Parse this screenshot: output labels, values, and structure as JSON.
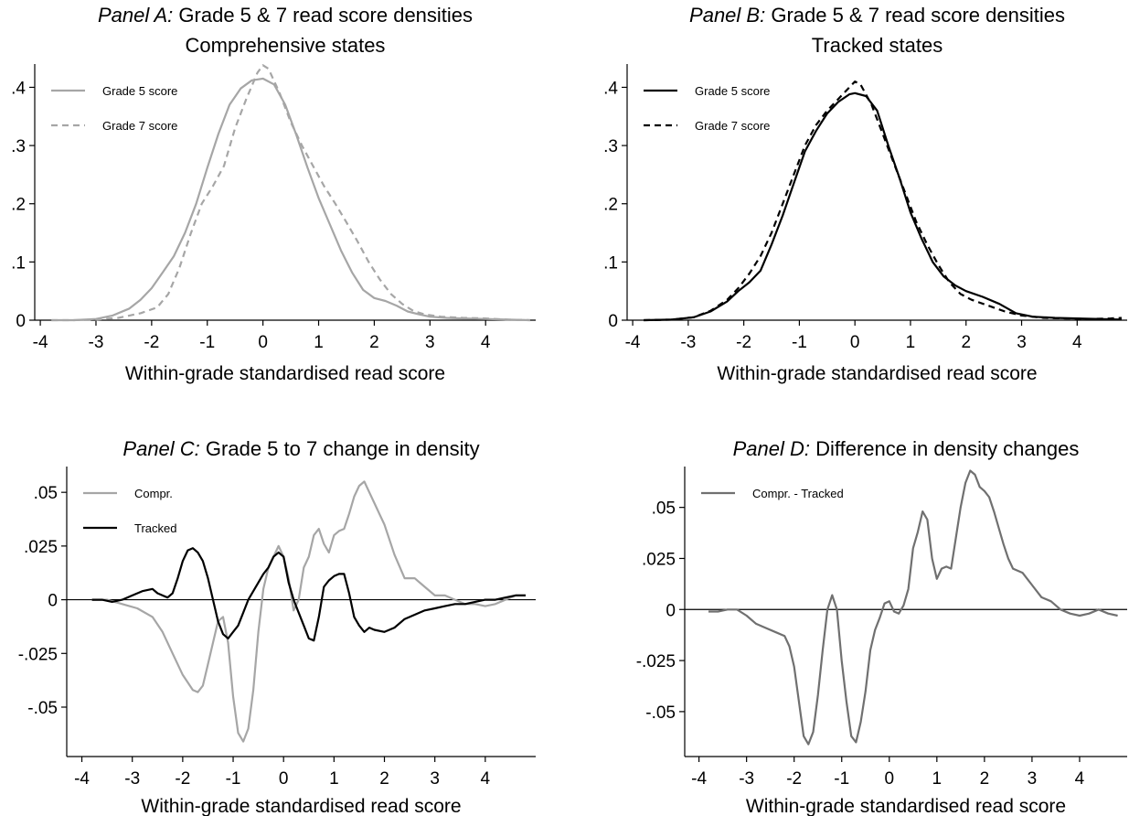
{
  "chart_data": [
    {
      "type": "line",
      "panel": "A",
      "title_prefix": "Panel A:",
      "title_rest": "Grade 5 & 7 read score densities",
      "subtitle": "Comprehensive states",
      "xlabel": "Within-grade standardised read score",
      "ylabel": "",
      "xlim": [
        -4.1,
        4.9
      ],
      "ylim": [
        0,
        0.44
      ],
      "xticks": [
        -4,
        -3,
        -2,
        -1,
        0,
        1,
        2,
        3,
        4
      ],
      "xtick_labels": [
        "-4",
        "-3",
        "-2",
        "-1",
        "0",
        "1",
        "2",
        "3",
        "4"
      ],
      "yticks": [
        0,
        0.1,
        0.2,
        0.3,
        0.4
      ],
      "ytick_labels": [
        "0",
        ".1",
        ".2",
        ".3",
        ".4"
      ],
      "zero_line": false,
      "legend_position": "top-left",
      "series": [
        {
          "name": "Grade 5 score",
          "color": "#a6a6a6",
          "dash": "solid",
          "x": [
            -3.8,
            -3.4,
            -3.0,
            -2.7,
            -2.4,
            -2.2,
            -2.0,
            -1.8,
            -1.6,
            -1.4,
            -1.2,
            -1.0,
            -0.8,
            -0.6,
            -0.4,
            -0.2,
            0.0,
            0.2,
            0.4,
            0.6,
            0.8,
            1.0,
            1.2,
            1.4,
            1.6,
            1.8,
            2.0,
            2.2,
            2.4,
            2.6,
            2.8,
            3.0,
            3.3,
            3.6,
            4.0,
            4.4,
            4.8
          ],
          "y": [
            0.0,
            0.0,
            0.002,
            0.008,
            0.02,
            0.035,
            0.055,
            0.082,
            0.11,
            0.15,
            0.2,
            0.262,
            0.32,
            0.37,
            0.398,
            0.412,
            0.415,
            0.405,
            0.37,
            0.318,
            0.262,
            0.21,
            0.165,
            0.12,
            0.082,
            0.052,
            0.038,
            0.033,
            0.025,
            0.015,
            0.01,
            0.006,
            0.004,
            0.003,
            0.002,
            0.001,
            0.0
          ]
        },
        {
          "name": "Grade 7 score",
          "color": "#a6a6a6",
          "dash": "dashed",
          "x": [
            -3.8,
            -3.4,
            -3.0,
            -2.6,
            -2.2,
            -1.9,
            -1.7,
            -1.5,
            -1.3,
            -1.1,
            -0.9,
            -0.7,
            -0.5,
            -0.3,
            -0.1,
            0.0,
            0.1,
            0.3,
            0.5,
            0.7,
            0.9,
            1.1,
            1.3,
            1.5,
            1.7,
            1.9,
            2.1,
            2.3,
            2.5,
            2.7,
            2.9,
            3.2,
            3.6,
            4.0,
            4.4,
            4.8
          ],
          "y": [
            0.0,
            0.0,
            0.001,
            0.004,
            0.012,
            0.022,
            0.045,
            0.09,
            0.148,
            0.2,
            0.23,
            0.265,
            0.33,
            0.38,
            0.425,
            0.438,
            0.432,
            0.39,
            0.34,
            0.3,
            0.265,
            0.23,
            0.2,
            0.168,
            0.135,
            0.1,
            0.07,
            0.045,
            0.028,
            0.016,
            0.01,
            0.006,
            0.004,
            0.003,
            0.001,
            0.0
          ]
        }
      ]
    },
    {
      "type": "line",
      "panel": "B",
      "title_prefix": "Panel B:",
      "title_rest": "Grade 5 & 7 read score densities",
      "subtitle": "Tracked states",
      "xlabel": "Within-grade standardised read score",
      "ylabel": "",
      "xlim": [
        -4.1,
        4.9
      ],
      "ylim": [
        0,
        0.44
      ],
      "xticks": [
        -4,
        -3,
        -2,
        -1,
        0,
        1,
        2,
        3,
        4
      ],
      "xtick_labels": [
        "-4",
        "-3",
        "-2",
        "-1",
        "0",
        "1",
        "2",
        "3",
        "4"
      ],
      "yticks": [
        0,
        0.1,
        0.2,
        0.3,
        0.4
      ],
      "ytick_labels": [
        "0",
        ".1",
        ".2",
        ".3",
        ".4"
      ],
      "zero_line": false,
      "legend_position": "top-left",
      "series": [
        {
          "name": "Grade 5 score",
          "color": "#000000",
          "dash": "solid",
          "x": [
            -3.8,
            -3.3,
            -2.9,
            -2.6,
            -2.3,
            -2.1,
            -1.9,
            -1.7,
            -1.5,
            -1.3,
            -1.1,
            -0.9,
            -0.7,
            -0.5,
            -0.3,
            -0.1,
            0.0,
            0.2,
            0.4,
            0.6,
            0.8,
            1.0,
            1.2,
            1.4,
            1.6,
            1.8,
            2.0,
            2.3,
            2.6,
            2.9,
            3.2,
            3.6,
            4.0,
            4.4,
            4.8
          ],
          "y": [
            0.0,
            0.001,
            0.005,
            0.015,
            0.032,
            0.05,
            0.065,
            0.085,
            0.13,
            0.18,
            0.235,
            0.29,
            0.325,
            0.355,
            0.375,
            0.388,
            0.39,
            0.385,
            0.36,
            0.3,
            0.245,
            0.185,
            0.14,
            0.1,
            0.075,
            0.06,
            0.05,
            0.04,
            0.028,
            0.012,
            0.006,
            0.004,
            0.003,
            0.002,
            0.001
          ]
        },
        {
          "name": "Grade 7 score",
          "color": "#000000",
          "dash": "dashed",
          "x": [
            -3.8,
            -3.3,
            -2.9,
            -2.6,
            -2.3,
            -2.1,
            -1.9,
            -1.7,
            -1.5,
            -1.3,
            -1.1,
            -0.9,
            -0.7,
            -0.5,
            -0.3,
            -0.1,
            0.0,
            0.1,
            0.3,
            0.5,
            0.7,
            0.9,
            1.1,
            1.3,
            1.5,
            1.7,
            1.9,
            2.1,
            2.4,
            2.7,
            3.0,
            3.4,
            3.8,
            4.2,
            4.6,
            4.8
          ],
          "y": [
            0.0,
            0.001,
            0.005,
            0.016,
            0.035,
            0.055,
            0.08,
            0.11,
            0.15,
            0.2,
            0.25,
            0.3,
            0.335,
            0.36,
            0.38,
            0.4,
            0.41,
            0.405,
            0.37,
            0.32,
            0.27,
            0.22,
            0.17,
            0.13,
            0.095,
            0.065,
            0.045,
            0.035,
            0.025,
            0.015,
            0.008,
            0.004,
            0.003,
            0.002,
            0.003,
            0.004
          ]
        }
      ]
    },
    {
      "type": "line",
      "panel": "C",
      "title_prefix": "Panel C:",
      "title_rest": "Grade 5 to 7 change in density",
      "subtitle": "",
      "xlabel": "Within-grade standardised read score",
      "ylabel": "",
      "xlim": [
        -4.3,
        5.0
      ],
      "ylim": [
        -0.073,
        0.062
      ],
      "xticks": [
        -4,
        -3,
        -2,
        -1,
        0,
        1,
        2,
        3,
        4
      ],
      "xtick_labels": [
        "-4",
        "-3",
        "-2",
        "-1",
        "0",
        "1",
        "2",
        "3",
        "4"
      ],
      "yticks": [
        -0.05,
        -0.025,
        0,
        0.025,
        0.05
      ],
      "ytick_labels": [
        "-.05",
        "-.025",
        "0",
        ".025",
        ".05"
      ],
      "zero_line": true,
      "legend_position": "top-left",
      "series": [
        {
          "name": "Compr.",
          "color": "#a6a6a6",
          "dash": "solid",
          "x": [
            -3.8,
            -3.5,
            -3.2,
            -2.9,
            -2.6,
            -2.4,
            -2.2,
            -2.0,
            -1.8,
            -1.7,
            -1.6,
            -1.5,
            -1.4,
            -1.3,
            -1.2,
            -1.1,
            -1.0,
            -0.9,
            -0.8,
            -0.7,
            -0.6,
            -0.5,
            -0.4,
            -0.3,
            -0.2,
            -0.1,
            0.0,
            0.1,
            0.2,
            0.3,
            0.4,
            0.5,
            0.6,
            0.7,
            0.8,
            0.9,
            1.0,
            1.1,
            1.2,
            1.3,
            1.4,
            1.5,
            1.6,
            1.7,
            1.8,
            1.9,
            2.0,
            2.1,
            2.2,
            2.4,
            2.6,
            2.8,
            3.0,
            3.2,
            3.4,
            3.6,
            3.8,
            4.0,
            4.2,
            4.4,
            4.6,
            4.8
          ],
          "y": [
            0.0,
            0.0,
            -0.002,
            -0.004,
            -0.008,
            -0.015,
            -0.025,
            -0.035,
            -0.042,
            -0.043,
            -0.04,
            -0.03,
            -0.02,
            -0.01,
            -0.008,
            -0.02,
            -0.045,
            -0.062,
            -0.066,
            -0.06,
            -0.042,
            -0.015,
            0.005,
            0.015,
            0.02,
            0.025,
            0.02,
            0.01,
            -0.005,
            0.0,
            0.015,
            0.02,
            0.03,
            0.033,
            0.026,
            0.022,
            0.03,
            0.032,
            0.033,
            0.04,
            0.048,
            0.053,
            0.055,
            0.05,
            0.045,
            0.04,
            0.035,
            0.028,
            0.021,
            0.01,
            0.01,
            0.006,
            0.002,
            0.002,
            0.0,
            -0.002,
            -0.002,
            -0.003,
            -0.002,
            0.0,
            0.002,
            0.002
          ]
        },
        {
          "name": "Tracked",
          "color": "#000000",
          "dash": "solid",
          "x": [
            -3.8,
            -3.6,
            -3.4,
            -3.2,
            -3.0,
            -2.8,
            -2.6,
            -2.5,
            -2.4,
            -2.3,
            -2.2,
            -2.1,
            -2.0,
            -1.9,
            -1.8,
            -1.7,
            -1.6,
            -1.5,
            -1.4,
            -1.3,
            -1.2,
            -1.1,
            -1.0,
            -0.9,
            -0.8,
            -0.7,
            -0.6,
            -0.5,
            -0.4,
            -0.3,
            -0.2,
            -0.1,
            0.0,
            0.1,
            0.2,
            0.3,
            0.4,
            0.5,
            0.6,
            0.7,
            0.8,
            0.9,
            1.0,
            1.1,
            1.2,
            1.3,
            1.4,
            1.5,
            1.6,
            1.7,
            1.8,
            2.0,
            2.2,
            2.4,
            2.6,
            2.8,
            3.0,
            3.2,
            3.4,
            3.6,
            3.8,
            4.0,
            4.2,
            4.4,
            4.6,
            4.8
          ],
          "y": [
            0.0,
            0.0,
            -0.001,
            0.0,
            0.002,
            0.004,
            0.005,
            0.003,
            0.002,
            0.001,
            0.003,
            0.01,
            0.018,
            0.023,
            0.024,
            0.022,
            0.018,
            0.01,
            0.0,
            -0.01,
            -0.016,
            -0.018,
            -0.015,
            -0.012,
            -0.006,
            0.0,
            0.004,
            0.008,
            0.012,
            0.015,
            0.02,
            0.022,
            0.02,
            0.008,
            0.0,
            -0.006,
            -0.012,
            -0.018,
            -0.019,
            -0.008,
            0.006,
            0.009,
            0.011,
            0.012,
            0.012,
            0.003,
            -0.008,
            -0.012,
            -0.015,
            -0.013,
            -0.014,
            -0.015,
            -0.013,
            -0.009,
            -0.007,
            -0.005,
            -0.004,
            -0.003,
            -0.002,
            -0.002,
            -0.001,
            0.0,
            0.0,
            0.001,
            0.002,
            0.002
          ]
        }
      ]
    },
    {
      "type": "line",
      "panel": "D",
      "title_prefix": "Panel D:",
      "title_rest": "Difference in density changes",
      "subtitle": "",
      "xlabel": "Within-grade standardised read score",
      "ylabel": "",
      "xlim": [
        -4.3,
        5.0
      ],
      "ylim": [
        -0.072,
        0.07
      ],
      "xticks": [
        -4,
        -3,
        -2,
        -1,
        0,
        1,
        2,
        3,
        4
      ],
      "xtick_labels": [
        "-4",
        "-3",
        "-2",
        "-1",
        "0",
        "1",
        "2",
        "3",
        "4"
      ],
      "yticks": [
        -0.05,
        -0.025,
        0,
        0.025,
        0.05
      ],
      "ytick_labels": [
        "-.05",
        "-.025",
        "0",
        ".025",
        ".05"
      ],
      "zero_line": true,
      "legend_position": "top-left",
      "series": [
        {
          "name": "Compr. - Tracked",
          "color": "#707070",
          "dash": "solid",
          "x": [
            -3.8,
            -3.6,
            -3.4,
            -3.2,
            -3.0,
            -2.8,
            -2.6,
            -2.4,
            -2.2,
            -2.1,
            -2.0,
            -1.9,
            -1.8,
            -1.7,
            -1.6,
            -1.5,
            -1.4,
            -1.3,
            -1.2,
            -1.1,
            -1.0,
            -0.9,
            -0.8,
            -0.7,
            -0.6,
            -0.5,
            -0.4,
            -0.3,
            -0.2,
            -0.1,
            0.0,
            0.1,
            0.2,
            0.3,
            0.4,
            0.5,
            0.6,
            0.7,
            0.8,
            0.9,
            1.0,
            1.1,
            1.2,
            1.3,
            1.4,
            1.5,
            1.6,
            1.7,
            1.8,
            1.9,
            2.0,
            2.1,
            2.2,
            2.3,
            2.4,
            2.5,
            2.6,
            2.8,
            3.0,
            3.2,
            3.4,
            3.6,
            3.8,
            4.0,
            4.2,
            4.4,
            4.6,
            4.8
          ],
          "y": [
            -0.001,
            -0.001,
            0.0,
            0.0,
            -0.003,
            -0.007,
            -0.009,
            -0.011,
            -0.013,
            -0.018,
            -0.028,
            -0.045,
            -0.062,
            -0.066,
            -0.06,
            -0.042,
            -0.02,
            0.0,
            0.007,
            0.0,
            -0.025,
            -0.045,
            -0.062,
            -0.065,
            -0.055,
            -0.04,
            -0.02,
            -0.01,
            -0.004,
            0.003,
            0.004,
            -0.001,
            -0.002,
            0.002,
            0.01,
            0.03,
            0.038,
            0.048,
            0.044,
            0.025,
            0.015,
            0.02,
            0.021,
            0.02,
            0.035,
            0.05,
            0.062,
            0.068,
            0.066,
            0.06,
            0.058,
            0.055,
            0.048,
            0.04,
            0.032,
            0.025,
            0.02,
            0.018,
            0.012,
            0.006,
            0.004,
            0.0,
            -0.002,
            -0.003,
            -0.002,
            0.0,
            -0.002,
            -0.003
          ]
        }
      ]
    }
  ]
}
